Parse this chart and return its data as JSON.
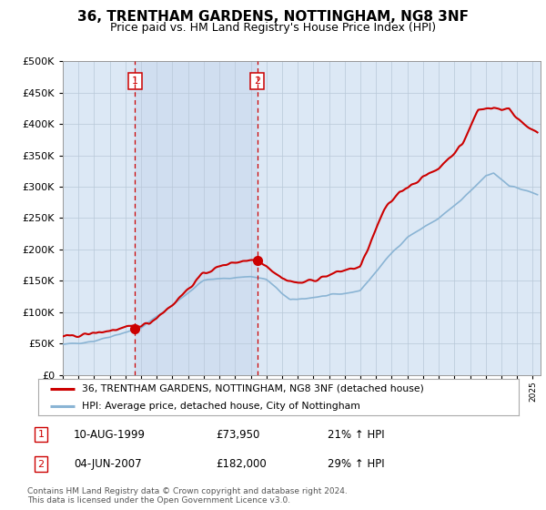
{
  "title": "36, TRENTHAM GARDENS, NOTTINGHAM, NG8 3NF",
  "subtitle": "Price paid vs. HM Land Registry's House Price Index (HPI)",
  "legend_line1": "36, TRENTHAM GARDENS, NOTTINGHAM, NG8 3NF (detached house)",
  "legend_line2": "HPI: Average price, detached house, City of Nottingham",
  "footnote": "Contains HM Land Registry data © Crown copyright and database right 2024.\nThis data is licensed under the Open Government Licence v3.0.",
  "transaction1_label": "1",
  "transaction1_date": "10-AUG-1999",
  "transaction1_price": "£73,950",
  "transaction1_hpi": "21% ↑ HPI",
  "transaction2_label": "2",
  "transaction2_date": "04-JUN-2007",
  "transaction2_price": "£182,000",
  "transaction2_hpi": "29% ↑ HPI",
  "transaction1_x": 1999.6,
  "transaction1_y": 73950,
  "transaction2_x": 2007.42,
  "transaction2_y": 182000,
  "vline1_x": 1999.6,
  "vline2_x": 2007.42,
  "ylim": [
    0,
    500000
  ],
  "xlim_start": 1995.0,
  "xlim_end": 2025.5,
  "hpi_color": "#8ab4d4",
  "price_color": "#cc0000",
  "background_color": "#dce8f5",
  "highlight_color": "#c8d8ee",
  "plot_bg_color": "#ffffff",
  "grid_color": "#b8c8d8",
  "vline_color": "#cc0000",
  "marker_color": "#cc0000",
  "box_color": "#cc0000",
  "title_fontsize": 11,
  "subtitle_fontsize": 9
}
